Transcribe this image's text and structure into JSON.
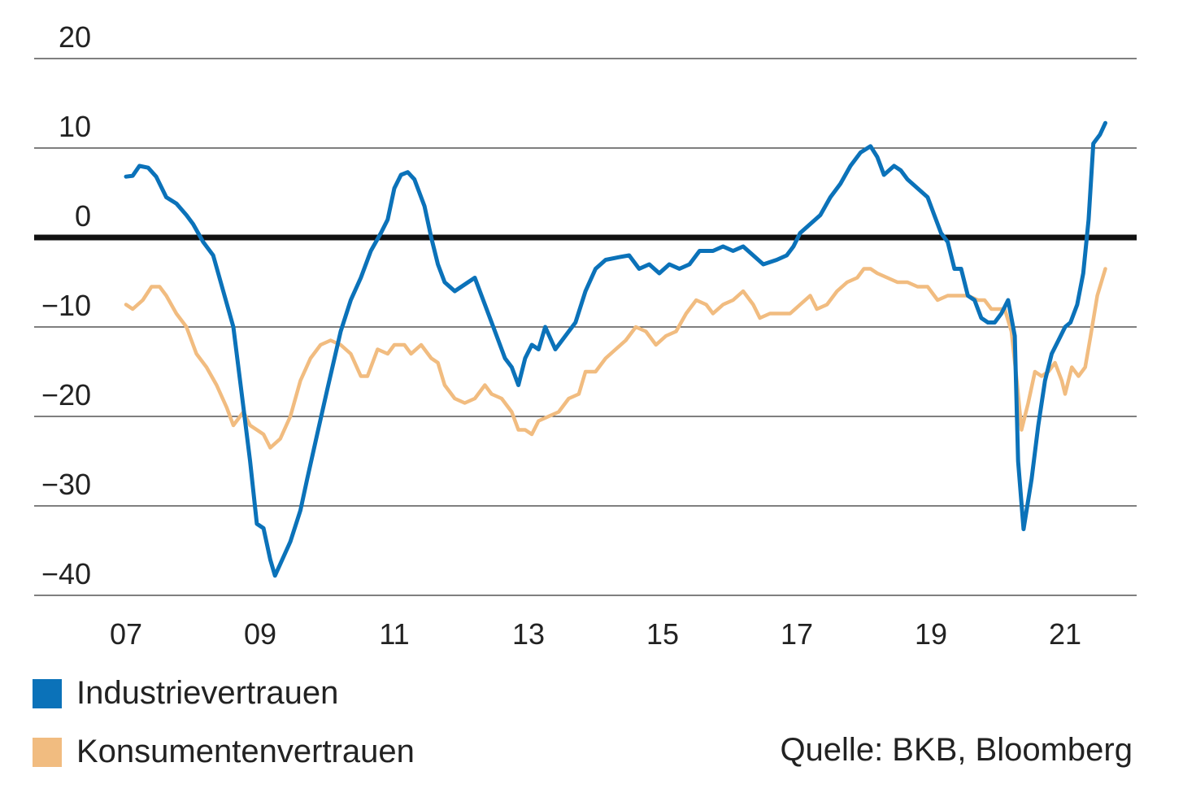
{
  "chart_data": {
    "type": "line",
    "title": "",
    "xlabel": "",
    "ylabel": "",
    "ylim": [
      -40,
      20
    ],
    "xlim": [
      2006.95,
      2022.35
    ],
    "yticks": [
      20,
      10,
      0,
      -10,
      -20,
      -30,
      -40
    ],
    "ytick_labels": [
      "20",
      "10",
      "0",
      "−10",
      "−20",
      "−30",
      "−40"
    ],
    "xticks": [
      2007,
      2009,
      2011,
      2013,
      2015,
      2017,
      2019,
      2021
    ],
    "xtick_labels": [
      "07",
      "09",
      "11",
      "13",
      "15",
      "17",
      "19",
      "21"
    ],
    "zero_line": true,
    "grid": "horizontal",
    "legend_position": "bottom-left",
    "series": [
      {
        "name": "Industrievertrauen",
        "color": "#0b72b9",
        "points": [
          [
            2007.0,
            6.8
          ],
          [
            2007.1,
            6.9
          ],
          [
            2007.2,
            8.0
          ],
          [
            2007.33,
            7.8
          ],
          [
            2007.45,
            6.8
          ],
          [
            2007.6,
            4.5
          ],
          [
            2007.75,
            3.8
          ],
          [
            2007.9,
            2.5
          ],
          [
            2008.0,
            1.5
          ],
          [
            2008.15,
            -0.5
          ],
          [
            2008.3,
            -2.0
          ],
          [
            2008.45,
            -6.0
          ],
          [
            2008.6,
            -10.0
          ],
          [
            2008.75,
            -19.0
          ],
          [
            2008.85,
            -25.0
          ],
          [
            2008.95,
            -32.0
          ],
          [
            2009.05,
            -32.5
          ],
          [
            2009.15,
            -36.0
          ],
          [
            2009.22,
            -37.8
          ],
          [
            2009.3,
            -36.5
          ],
          [
            2009.45,
            -34.0
          ],
          [
            2009.6,
            -30.5
          ],
          [
            2009.7,
            -27.0
          ],
          [
            2009.85,
            -22.0
          ],
          [
            2010.0,
            -17.0
          ],
          [
            2010.2,
            -10.5
          ],
          [
            2010.35,
            -7.0
          ],
          [
            2010.5,
            -4.5
          ],
          [
            2010.65,
            -1.5
          ],
          [
            2010.8,
            0.5
          ],
          [
            2010.9,
            2.0
          ],
          [
            2011.0,
            5.5
          ],
          [
            2011.1,
            7.0
          ],
          [
            2011.2,
            7.3
          ],
          [
            2011.3,
            6.5
          ],
          [
            2011.45,
            3.5
          ],
          [
            2011.55,
            0.0
          ],
          [
            2011.65,
            -3.0
          ],
          [
            2011.75,
            -5.0
          ],
          [
            2011.9,
            -6.0
          ],
          [
            2012.0,
            -5.5
          ],
          [
            2012.1,
            -5.0
          ],
          [
            2012.2,
            -4.5
          ],
          [
            2012.35,
            -7.5
          ],
          [
            2012.5,
            -10.5
          ],
          [
            2012.65,
            -13.5
          ],
          [
            2012.75,
            -14.5
          ],
          [
            2012.85,
            -16.5
          ],
          [
            2012.95,
            -13.5
          ],
          [
            2013.05,
            -12.0
          ],
          [
            2013.15,
            -12.5
          ],
          [
            2013.25,
            -10.0
          ],
          [
            2013.4,
            -12.5
          ],
          [
            2013.55,
            -11.0
          ],
          [
            2013.7,
            -9.5
          ],
          [
            2013.85,
            -6.0
          ],
          [
            2014.0,
            -3.5
          ],
          [
            2014.15,
            -2.5
          ],
          [
            2014.35,
            -2.2
          ],
          [
            2014.5,
            -2.0
          ],
          [
            2014.65,
            -3.5
          ],
          [
            2014.8,
            -3.0
          ],
          [
            2014.95,
            -4.0
          ],
          [
            2015.1,
            -3.0
          ],
          [
            2015.25,
            -3.5
          ],
          [
            2015.4,
            -3.0
          ],
          [
            2015.55,
            -1.5
          ],
          [
            2015.75,
            -1.5
          ],
          [
            2015.9,
            -1.0
          ],
          [
            2016.05,
            -1.5
          ],
          [
            2016.2,
            -1.0
          ],
          [
            2016.35,
            -2.0
          ],
          [
            2016.5,
            -3.0
          ],
          [
            2016.7,
            -2.5
          ],
          [
            2016.85,
            -2.0
          ],
          [
            2016.95,
            -1.0
          ],
          [
            2017.05,
            0.5
          ],
          [
            2017.2,
            1.5
          ],
          [
            2017.35,
            2.5
          ],
          [
            2017.5,
            4.5
          ],
          [
            2017.65,
            6.0
          ],
          [
            2017.8,
            8.0
          ],
          [
            2017.95,
            9.5
          ],
          [
            2018.1,
            10.2
          ],
          [
            2018.2,
            9.0
          ],
          [
            2018.3,
            7.0
          ],
          [
            2018.45,
            8.0
          ],
          [
            2018.55,
            7.5
          ],
          [
            2018.65,
            6.5
          ],
          [
            2018.8,
            5.5
          ],
          [
            2018.95,
            4.5
          ],
          [
            2019.05,
            2.5
          ],
          [
            2019.15,
            0.5
          ],
          [
            2019.25,
            -0.5
          ],
          [
            2019.35,
            -3.5
          ],
          [
            2019.45,
            -3.5
          ],
          [
            2019.55,
            -6.5
          ],
          [
            2019.65,
            -7.0
          ],
          [
            2019.75,
            -9.0
          ],
          [
            2019.85,
            -9.5
          ],
          [
            2019.95,
            -9.5
          ],
          [
            2020.05,
            -8.5
          ],
          [
            2020.15,
            -7.0
          ],
          [
            2020.25,
            -11.0
          ],
          [
            2020.3,
            -25.0
          ],
          [
            2020.38,
            -32.6
          ],
          [
            2020.5,
            -27.0
          ],
          [
            2020.6,
            -21.0
          ],
          [
            2020.7,
            -16.0
          ],
          [
            2020.8,
            -13.0
          ],
          [
            2020.9,
            -11.5
          ],
          [
            2021.0,
            -10.0
          ],
          [
            2021.08,
            -9.5
          ],
          [
            2021.18,
            -7.5
          ],
          [
            2021.27,
            -4.0
          ],
          [
            2021.35,
            2.0
          ],
          [
            2021.42,
            10.5
          ],
          [
            2021.52,
            11.5
          ],
          [
            2021.6,
            12.8
          ]
        ]
      },
      {
        "name": "Konsumentenvertrauen",
        "color": "#f1bc80",
        "points": [
          [
            2007.0,
            -7.5
          ],
          [
            2007.1,
            -8.0
          ],
          [
            2007.25,
            -7.0
          ],
          [
            2007.38,
            -5.5
          ],
          [
            2007.5,
            -5.5
          ],
          [
            2007.6,
            -6.5
          ],
          [
            2007.75,
            -8.5
          ],
          [
            2007.9,
            -10.0
          ],
          [
            2008.05,
            -13.0
          ],
          [
            2008.2,
            -14.5
          ],
          [
            2008.35,
            -16.5
          ],
          [
            2008.5,
            -19.0
          ],
          [
            2008.6,
            -21.0
          ],
          [
            2008.75,
            -19.5
          ],
          [
            2008.85,
            -21.0
          ],
          [
            2008.95,
            -21.5
          ],
          [
            2009.05,
            -22.0
          ],
          [
            2009.15,
            -23.5
          ],
          [
            2009.3,
            -22.5
          ],
          [
            2009.45,
            -20.0
          ],
          [
            2009.6,
            -16.0
          ],
          [
            2009.75,
            -13.5
          ],
          [
            2009.9,
            -12.0
          ],
          [
            2010.05,
            -11.5
          ],
          [
            2010.2,
            -12.0
          ],
          [
            2010.35,
            -13.0
          ],
          [
            2010.5,
            -15.5
          ],
          [
            2010.6,
            -15.5
          ],
          [
            2010.75,
            -12.5
          ],
          [
            2010.9,
            -13.0
          ],
          [
            2011.0,
            -12.0
          ],
          [
            2011.15,
            -12.0
          ],
          [
            2011.25,
            -13.0
          ],
          [
            2011.4,
            -12.0
          ],
          [
            2011.55,
            -13.5
          ],
          [
            2011.65,
            -14.0
          ],
          [
            2011.75,
            -16.5
          ],
          [
            2011.9,
            -18.0
          ],
          [
            2012.05,
            -18.5
          ],
          [
            2012.2,
            -18.0
          ],
          [
            2012.35,
            -16.5
          ],
          [
            2012.45,
            -17.5
          ],
          [
            2012.6,
            -18.0
          ],
          [
            2012.75,
            -19.5
          ],
          [
            2012.85,
            -21.5
          ],
          [
            2012.95,
            -21.5
          ],
          [
            2013.05,
            -22.0
          ],
          [
            2013.15,
            -20.5
          ],
          [
            2013.3,
            -20.0
          ],
          [
            2013.45,
            -19.5
          ],
          [
            2013.6,
            -18.0
          ],
          [
            2013.75,
            -17.5
          ],
          [
            2013.85,
            -15.0
          ],
          [
            2014.0,
            -15.0
          ],
          [
            2014.15,
            -13.5
          ],
          [
            2014.3,
            -12.5
          ],
          [
            2014.45,
            -11.5
          ],
          [
            2014.6,
            -10.0
          ],
          [
            2014.75,
            -10.5
          ],
          [
            2014.9,
            -12.0
          ],
          [
            2015.05,
            -11.0
          ],
          [
            2015.2,
            -10.5
          ],
          [
            2015.35,
            -8.5
          ],
          [
            2015.5,
            -7.0
          ],
          [
            2015.65,
            -7.5
          ],
          [
            2015.75,
            -8.5
          ],
          [
            2015.9,
            -7.5
          ],
          [
            2016.05,
            -7.0
          ],
          [
            2016.2,
            -6.0
          ],
          [
            2016.35,
            -7.5
          ],
          [
            2016.45,
            -9.0
          ],
          [
            2016.6,
            -8.5
          ],
          [
            2016.75,
            -8.5
          ],
          [
            2016.9,
            -8.5
          ],
          [
            2017.05,
            -7.5
          ],
          [
            2017.2,
            -6.5
          ],
          [
            2017.3,
            -8.0
          ],
          [
            2017.45,
            -7.5
          ],
          [
            2017.6,
            -6.0
          ],
          [
            2017.75,
            -5.0
          ],
          [
            2017.9,
            -4.5
          ],
          [
            2018.0,
            -3.5
          ],
          [
            2018.1,
            -3.5
          ],
          [
            2018.2,
            -4.0
          ],
          [
            2018.35,
            -4.5
          ],
          [
            2018.5,
            -5.0
          ],
          [
            2018.65,
            -5.0
          ],
          [
            2018.8,
            -5.5
          ],
          [
            2018.95,
            -5.5
          ],
          [
            2019.1,
            -7.0
          ],
          [
            2019.25,
            -6.5
          ],
          [
            2019.4,
            -6.5
          ],
          [
            2019.55,
            -6.5
          ],
          [
            2019.7,
            -7.0
          ],
          [
            2019.8,
            -7.0
          ],
          [
            2019.9,
            -8.0
          ],
          [
            2020.0,
            -8.0
          ],
          [
            2020.1,
            -8.0
          ],
          [
            2020.2,
            -10.5
          ],
          [
            2020.28,
            -16.0
          ],
          [
            2020.35,
            -21.5
          ],
          [
            2020.45,
            -18.5
          ],
          [
            2020.55,
            -15.0
          ],
          [
            2020.65,
            -15.5
          ],
          [
            2020.75,
            -15.0
          ],
          [
            2020.85,
            -14.0
          ],
          [
            2020.95,
            -16.0
          ],
          [
            2021.0,
            -17.5
          ],
          [
            2021.1,
            -14.5
          ],
          [
            2021.2,
            -15.5
          ],
          [
            2021.3,
            -14.5
          ],
          [
            2021.38,
            -11.0
          ],
          [
            2021.48,
            -6.5
          ],
          [
            2021.6,
            -3.5
          ]
        ]
      }
    ],
    "source": "Quelle: BKB, Bloomberg"
  }
}
